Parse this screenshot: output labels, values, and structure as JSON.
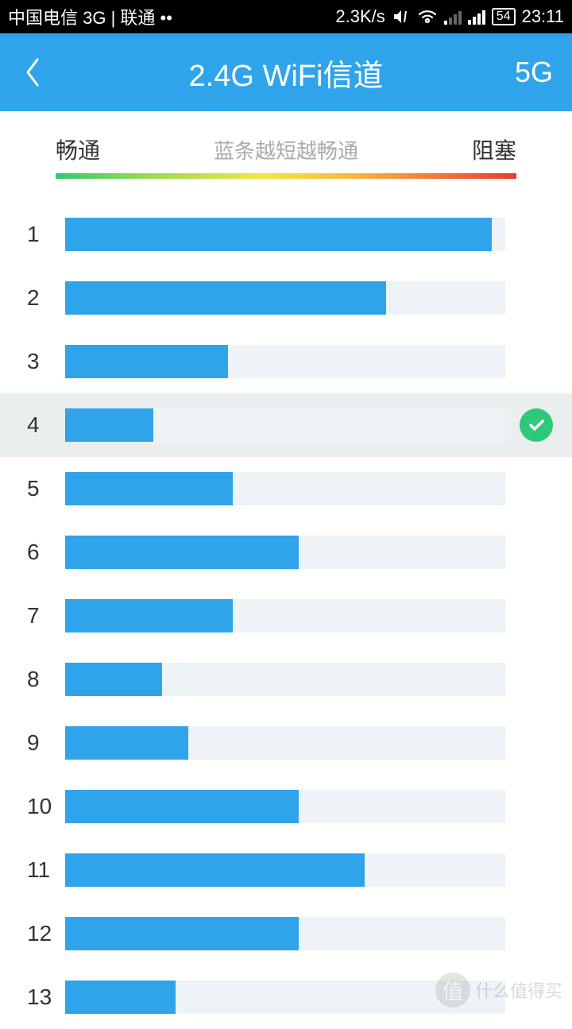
{
  "status_bar": {
    "carrier": "中国电信 3G | 联通 ••",
    "speed": "2.3K/s",
    "battery": "54",
    "time": "23:11"
  },
  "header": {
    "title": "2.4G WiFi信道",
    "action": "5G"
  },
  "legend": {
    "left": "畅通",
    "center": "蓝条越短越畅通",
    "right": "阻塞"
  },
  "channels": [
    {
      "num": "1",
      "pct": 97,
      "selected": false
    },
    {
      "num": "2",
      "pct": 73,
      "selected": false
    },
    {
      "num": "3",
      "pct": 37,
      "selected": false
    },
    {
      "num": "4",
      "pct": 20,
      "selected": true
    },
    {
      "num": "5",
      "pct": 38,
      "selected": false
    },
    {
      "num": "6",
      "pct": 53,
      "selected": false
    },
    {
      "num": "7",
      "pct": 38,
      "selected": false
    },
    {
      "num": "8",
      "pct": 22,
      "selected": false
    },
    {
      "num": "9",
      "pct": 28,
      "selected": false
    },
    {
      "num": "10",
      "pct": 53,
      "selected": false
    },
    {
      "num": "11",
      "pct": 68,
      "selected": false
    },
    {
      "num": "12",
      "pct": 53,
      "selected": false
    },
    {
      "num": "13",
      "pct": 25,
      "selected": false
    }
  ],
  "watermark": {
    "badge": "值",
    "text": "什么值得买"
  },
  "colors": {
    "header_bg": "#30a4eb",
    "bar_fill": "#30a4eb",
    "bar_track": "#edf3f7",
    "selected_bg": "#ebeeef",
    "check_bg": "#2dc979"
  }
}
